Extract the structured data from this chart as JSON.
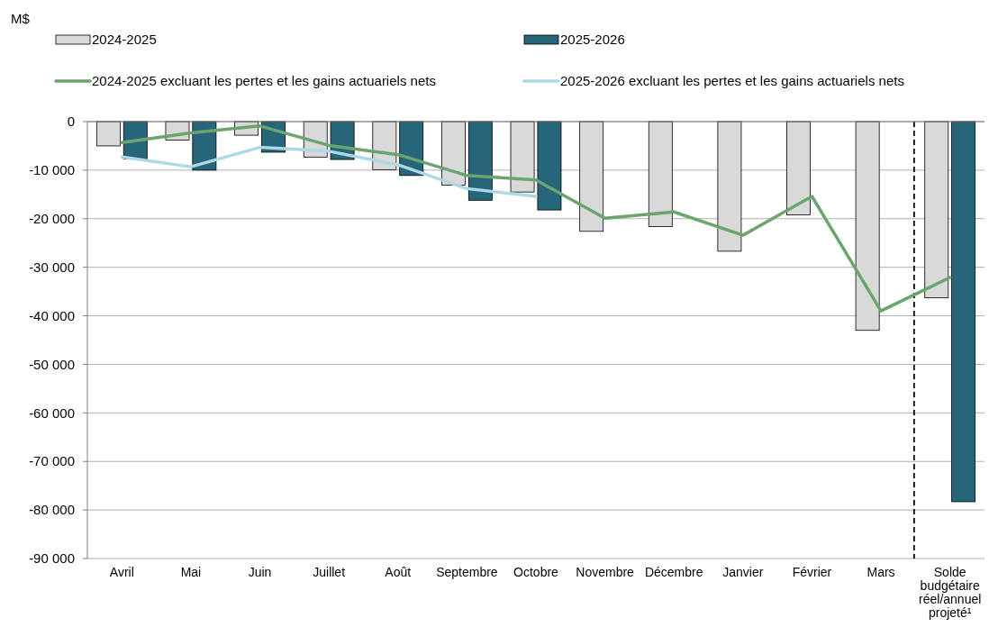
{
  "chart_data": {
    "type": "bar",
    "annotations": [
      "M$"
    ],
    "categories": [
      "Avril",
      "Mai",
      "Juin",
      "Juillet",
      "Août",
      "Septembre",
      "Octobre",
      "Novembre",
      "Décembre",
      "Janvier",
      "Février",
      "Mars",
      "Solde budgétaire réel/annuel projeté¹"
    ],
    "series": [
      {
        "name": "2024-2025",
        "type": "bar",
        "color": "#d9d9d9",
        "values": [
          -5000,
          -3800,
          -2800,
          -7300,
          -9900,
          -13100,
          -14500,
          -22600,
          -21600,
          -26700,
          -19200,
          -43000,
          -36300
        ]
      },
      {
        "name": "2025-2026",
        "type": "bar",
        "color": "#27667a",
        "values": [
          -7700,
          -10000,
          -6300,
          -7800,
          -11100,
          -16200,
          -18200,
          null,
          null,
          null,
          null,
          null,
          -78300
        ]
      },
      {
        "name": "2024-2025 excluant les pertes et les gains actuariels nets",
        "type": "line",
        "color": "#6aa56f",
        "values": [
          -4300,
          -2300,
          -900,
          -4900,
          -6800,
          -11100,
          -12000,
          -19900,
          -18600,
          -23400,
          -15400,
          -39000,
          -32100
        ]
      },
      {
        "name": "2025-2026 excluant les pertes et les gains actuariels nets",
        "type": "line",
        "color": "#add8e6",
        "values": [
          -7300,
          -9300,
          -5300,
          -6100,
          -8900,
          -13800,
          -15400,
          null,
          null,
          null,
          null,
          null,
          null
        ]
      }
    ],
    "ylim": [
      -90000,
      0
    ],
    "yticks": [
      {
        "value": -90000,
        "label": "-90 000"
      },
      {
        "value": -80000,
        "label": "-80 000"
      },
      {
        "value": -70000,
        "label": "-70 000"
      },
      {
        "value": -60000,
        "label": "-60 000"
      },
      {
        "value": -50000,
        "label": "-50 000"
      },
      {
        "value": -40000,
        "label": "-40 000"
      },
      {
        "value": -30000,
        "label": "-30 000"
      },
      {
        "value": -20000,
        "label": "-20 000"
      },
      {
        "value": -10000,
        "label": "-10 000"
      },
      0
    ],
    "grid": "y",
    "legend": "top",
    "line_style": "solid",
    "marker": "none",
    "ref_lines": [
      {
        "axis": "x",
        "value": "Solde budgétaire réel/annuel projeté¹",
        "color": "#000000",
        "line_style": "dashed"
      }
    ]
  }
}
